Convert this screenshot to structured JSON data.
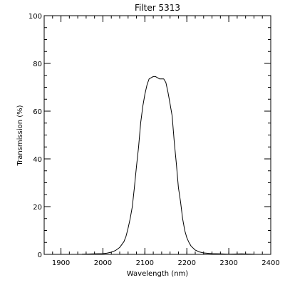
{
  "chart_data": {
    "type": "line",
    "title": "Filter 5313",
    "xlabel": "Wavelength (nm)",
    "ylabel": "Transmission (%)",
    "xlim": [
      1860,
      2400
    ],
    "ylim": [
      0,
      100
    ],
    "x_ticks": [
      1900,
      2000,
      2100,
      2200,
      2300,
      2400
    ],
    "y_ticks": [
      0,
      20,
      40,
      60,
      80,
      100
    ],
    "x_minor_step": 20,
    "y_minor_step": 5,
    "grid": false,
    "series": [
      {
        "color": "#000000",
        "x": [
          1950,
          1980,
          2000,
          2010,
          2020,
          2030,
          2040,
          2050,
          2055,
          2060,
          2065,
          2070,
          2075,
          2080,
          2085,
          2090,
          2095,
          2100,
          2105,
          2110,
          2115,
          2120,
          2125,
          2130,
          2135,
          2140,
          2145,
          2150,
          2155,
          2160,
          2165,
          2170,
          2175,
          2180,
          2185,
          2190,
          2195,
          2200,
          2205,
          2210,
          2220,
          2230,
          2240,
          2260,
          2280,
          2300,
          2330,
          2360
        ],
        "y": [
          0.1,
          0.2,
          0.3,
          0.5,
          0.9,
          1.6,
          2.9,
          5.3,
          7.5,
          11,
          15,
          20,
          28,
          37,
          45,
          55,
          62,
          67,
          71,
          73.5,
          74,
          74.5,
          74.5,
          74,
          73.5,
          73.5,
          73.5,
          72,
          68,
          63,
          58,
          47,
          38,
          28,
          22,
          15,
          10,
          7,
          5,
          3.5,
          1.8,
          1.0,
          0.6,
          0.3,
          0.2,
          0.1,
          0.2,
          0.1
        ]
      }
    ]
  }
}
